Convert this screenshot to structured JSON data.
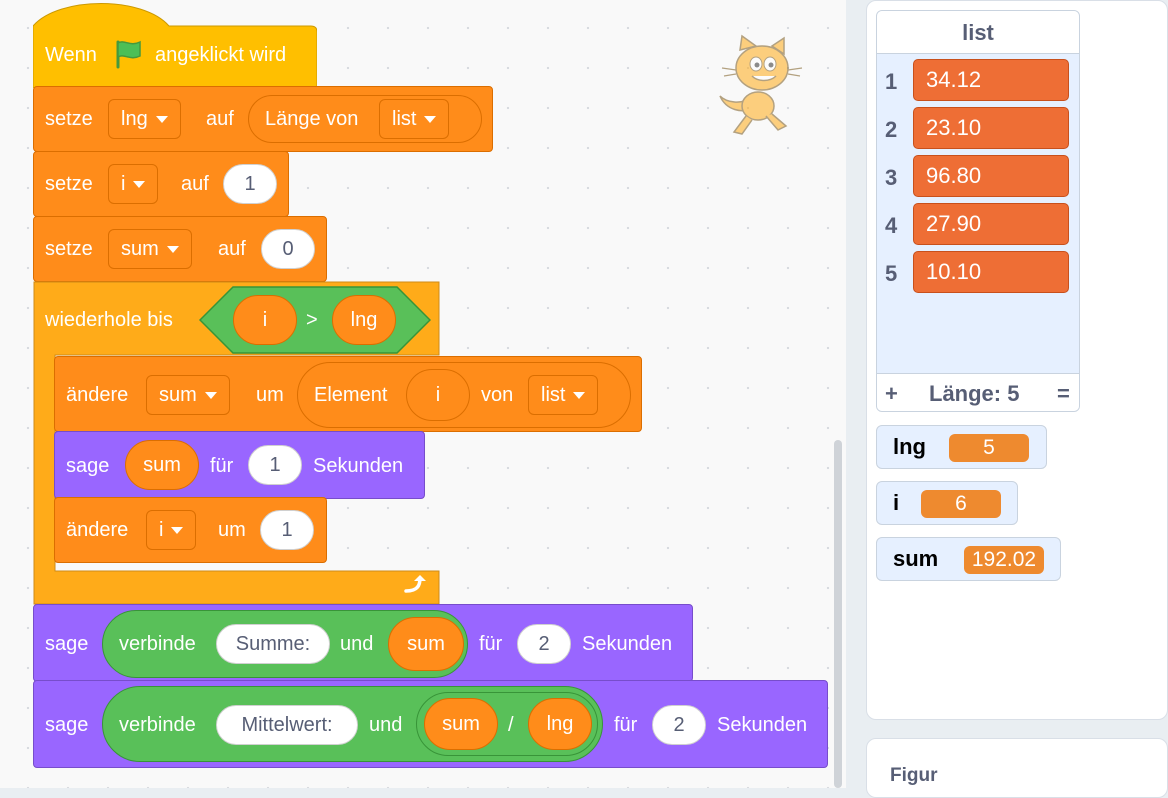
{
  "script": {
    "hat": {
      "prefix": "Wenn",
      "suffix": "angeklickt wird",
      "icon": "green-flag-icon"
    },
    "set_lng": {
      "verb": "setze",
      "var": "lng",
      "mid": "auf",
      "reporter": "Länge von",
      "list": "list"
    },
    "set_i": {
      "verb": "setze",
      "var": "i",
      "mid": "auf",
      "value": "1"
    },
    "set_sum": {
      "verb": "setze",
      "var": "sum",
      "mid": "auf",
      "value": "0"
    },
    "repeat": {
      "label": "wiederhole bis",
      "left": "i",
      "op": ">",
      "right": "lng"
    },
    "change_sum": {
      "verb": "ändere",
      "var": "sum",
      "mid": "um",
      "reporter": "Element",
      "index": "i",
      "of": "von",
      "list": "list"
    },
    "say_sum": {
      "verb": "sage",
      "var": "sum",
      "mid": "für",
      "value": "1",
      "unit": "Sekunden"
    },
    "change_i": {
      "verb": "ändere",
      "var": "i",
      "mid": "um",
      "value": "1"
    },
    "say_total": {
      "verb": "sage",
      "join": "verbinde",
      "text": "Summe:",
      "and": "und",
      "var": "sum",
      "mid": "für",
      "value": "2",
      "unit": "Sekunden"
    },
    "say_mean": {
      "verb": "sage",
      "join": "verbinde",
      "text": "Mittelwert:",
      "and": "und",
      "num": "sum",
      "div": "/",
      "den": "lng",
      "mid": "für",
      "value": "2",
      "unit": "Sekunden"
    }
  },
  "list_monitor": {
    "title": "list",
    "items": [
      {
        "index": "1",
        "value": "34.12"
      },
      {
        "index": "2",
        "value": "23.10"
      },
      {
        "index": "3",
        "value": "96.80"
      },
      {
        "index": "4",
        "value": "27.90"
      },
      {
        "index": "5",
        "value": "10.10"
      }
    ],
    "add": "+",
    "length": "Länge: 5",
    "resize": "="
  },
  "variable_monitors": [
    {
      "name": "lng",
      "value": "5"
    },
    {
      "name": "i",
      "value": "6"
    },
    {
      "name": "sum",
      "value": "192.02"
    }
  ],
  "sprite_panel": {
    "label": "Figur"
  },
  "colors": {
    "events": "#ffab19",
    "variables": "#ff8c1a",
    "looks": "#9966ff",
    "operators": "#59c059",
    "list_item": "#ee6e35"
  }
}
